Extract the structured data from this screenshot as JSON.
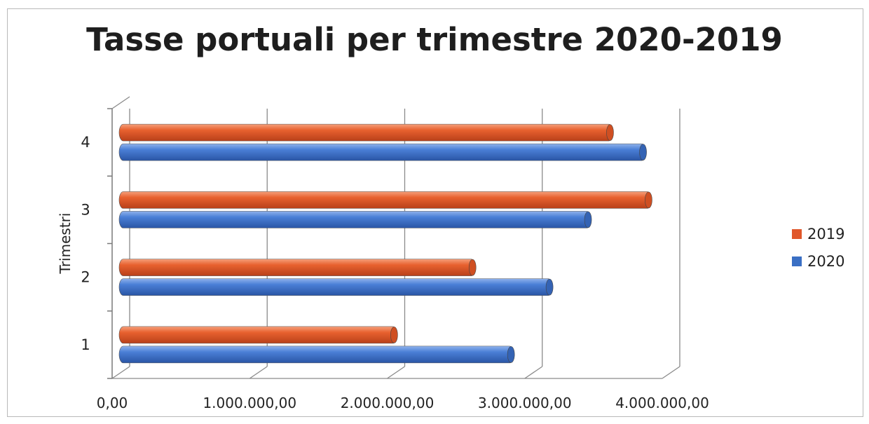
{
  "chart_data": {
    "type": "bar",
    "orientation": "horizontal",
    "title": "Tasse portuali per trimestre 2020-2019",
    "ylabel": "Trimestri",
    "xlabel": "",
    "categories": [
      "1",
      "2",
      "3",
      "4"
    ],
    "series": [
      {
        "name": "2019",
        "color": "#e0572a",
        "values": [
          2040000,
          2610000,
          3890000,
          3610000
        ]
      },
      {
        "name": "2020",
        "color": "#3a6fc4",
        "values": [
          2890000,
          3170000,
          3450000,
          3850000
        ]
      }
    ],
    "xlim": [
      0,
      4000000
    ],
    "x_ticks": [
      "0,00",
      "1.000.000,00",
      "2.000.000,00",
      "3.000.000,00",
      "4.000.000,00"
    ],
    "grid": true,
    "legend_position": "right"
  }
}
